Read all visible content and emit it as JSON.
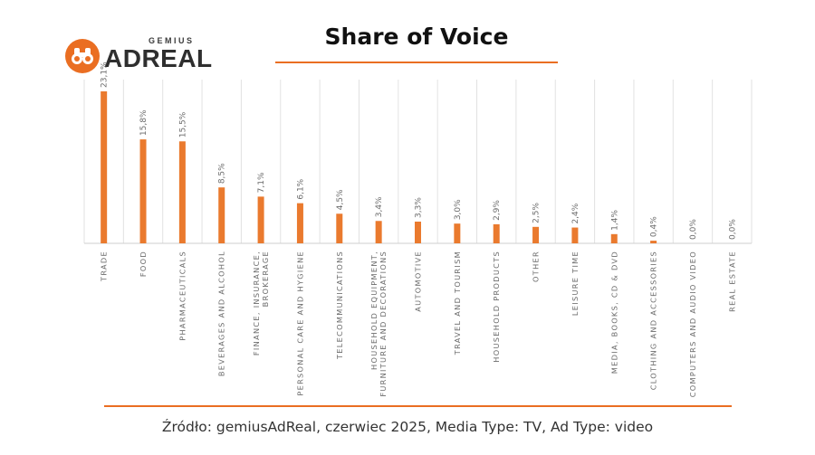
{
  "logo": {
    "small": "GEMIUS",
    "big": "ADREAL",
    "icon": "binoculars-icon",
    "color": "#ea6e22"
  },
  "chart_data": {
    "type": "bar",
    "title": "Share of Voice",
    "categories": [
      [
        "TRADE"
      ],
      [
        "FOOD"
      ],
      [
        "PHARMACEUTICALS"
      ],
      [
        "BEVERAGES AND ALCOHOL"
      ],
      [
        "FINANCE, INSURANCE,",
        "BROKERAGE"
      ],
      [
        "PERSONAL CARE AND HYGIENE"
      ],
      [
        "TELECOMMUNICATIONS"
      ],
      [
        "HOUSEHOLD EQUIPMENT,",
        "FURNITURE AND DECORATIONS"
      ],
      [
        "AUTOMOTIVE"
      ],
      [
        "TRAVEL AND TOURISM"
      ],
      [
        "HOUSEHOLD PRODUCTS"
      ],
      [
        "OTHER"
      ],
      [
        "LEISURE TIME"
      ],
      [
        "MEDIA, BOOKS, CD & DVD"
      ],
      [
        "CLOTHING AND ACCESSORIES"
      ],
      [
        "COMPUTERS AND AUDIO VIDEO"
      ],
      [
        "REAL ESTATE"
      ]
    ],
    "values": [
      23.1,
      15.8,
      15.5,
      8.5,
      7.1,
      6.1,
      4.5,
      3.4,
      3.3,
      3.0,
      2.9,
      2.5,
      2.4,
      1.4,
      0.4,
      0.0,
      0.0
    ],
    "value_labels": [
      "23,1%",
      "15,8%",
      "15,5%",
      "8,5%",
      "7,1%",
      "6,1%",
      "4,5%",
      "3,4%",
      "3,3%",
      "3,0%",
      "2,9%",
      "2,5%",
      "2,4%",
      "1,4%",
      "0,4%",
      "0,0%",
      "0,0%"
    ],
    "ylim": [
      0,
      23.1
    ],
    "grid": true,
    "bar_color": "#ea7a2e"
  },
  "source_note": "Źródło: gemiusAdReal, czerwiec 2025, Media Type: TV, Ad Type: video"
}
